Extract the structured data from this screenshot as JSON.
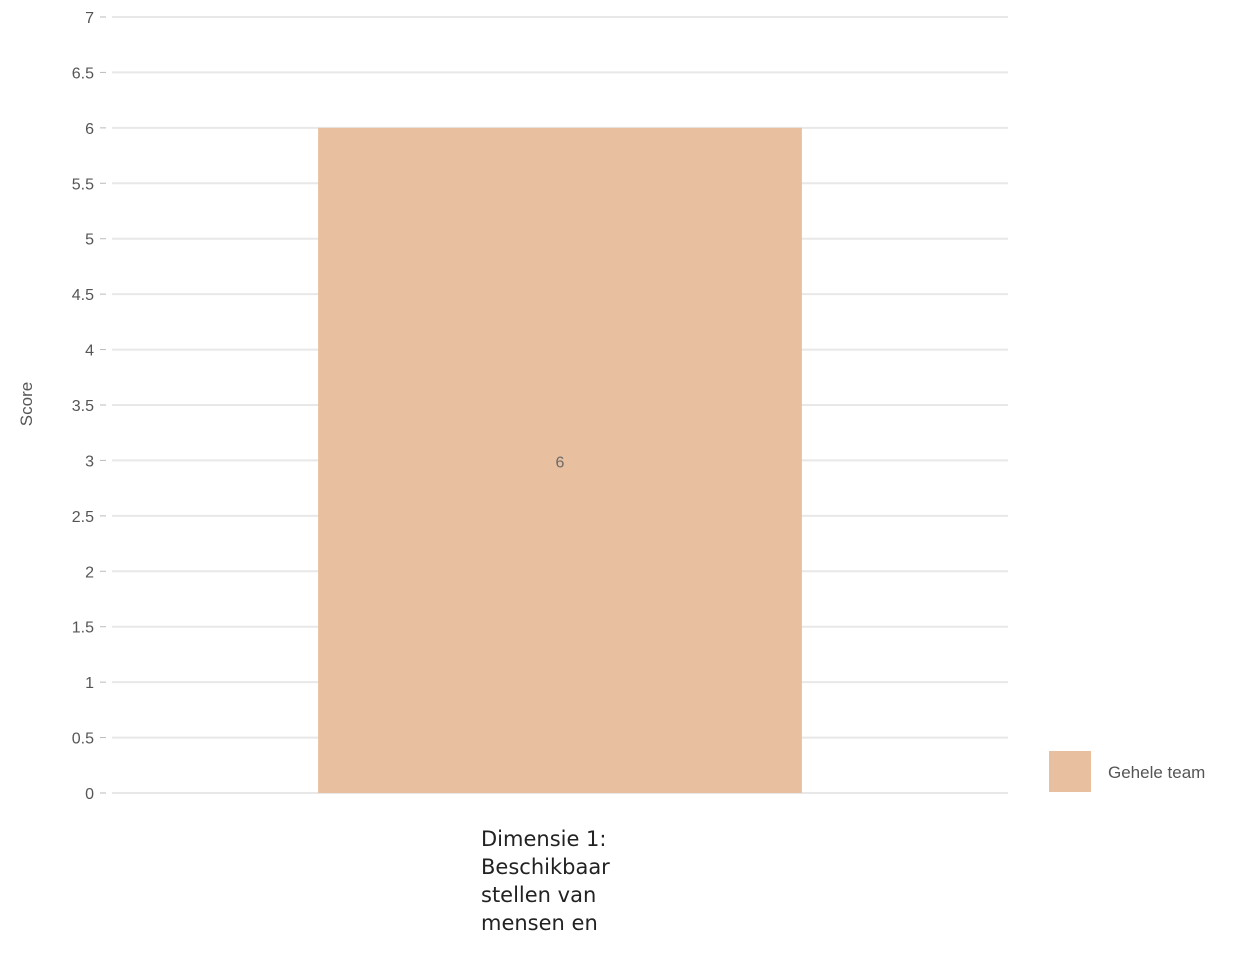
{
  "chart_data": {
    "type": "bar",
    "categories": [
      "Dimensie 1: Beschikbaar stellen van mensen en"
    ],
    "series": [
      {
        "name": "Gehele team",
        "values": [
          6
        ],
        "color": "#e8c0a0"
      }
    ],
    "data_labels": [
      "6"
    ],
    "xlabel": "",
    "ylabel": "Score",
    "ylim": [
      0,
      7
    ],
    "yticks": [
      "0",
      "0.5",
      "1",
      "1.5",
      "2",
      "2.5",
      "3",
      "3.5",
      "4",
      "4.5",
      "5",
      "5.5",
      "6",
      "6.5",
      "7"
    ],
    "grid": true,
    "legend_position": "right",
    "gridline_color": "#e8e8e8"
  }
}
